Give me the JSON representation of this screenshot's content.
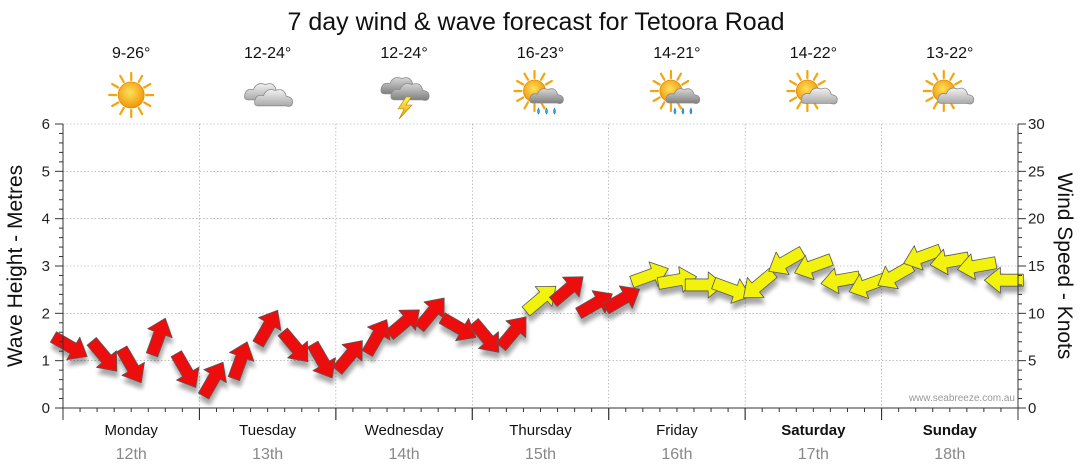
{
  "chart_data": {
    "type": "wind-wave-forecast",
    "title": "7 day wind & wave forecast for Tetoora Road",
    "ylabel_left": "Wave Height - Metres",
    "ylabel_right": "Wind Speed - Knots",
    "ylim_left": [
      0,
      6
    ],
    "ylim_right": [
      0,
      30
    ],
    "yticks_left": [
      "0",
      "1",
      "2",
      "3",
      "4",
      "5",
      "6"
    ],
    "yticks_right": [
      "0",
      "5",
      "10",
      "15",
      "20",
      "25",
      "30"
    ],
    "watermark": "www.seabreeze.com.au",
    "colors": {
      "red": "#ee1111",
      "yellow": "#f2f20a",
      "outline": "#555555",
      "grid": "#999999"
    },
    "days": [
      {
        "name": "Monday",
        "date": "12th",
        "temp": "9-26°",
        "weather": "sunny-icon",
        "weekend": false
      },
      {
        "name": "Tuesday",
        "date": "13th",
        "temp": "12-24°",
        "weather": "cloudy-icon",
        "weekend": false
      },
      {
        "name": "Wednesday",
        "date": "14th",
        "temp": "12-24°",
        "weather": "thunderstorm-icon",
        "weekend": false
      },
      {
        "name": "Thursday",
        "date": "15th",
        "temp": "16-23°",
        "weather": "sun-showers-icon",
        "weekend": false
      },
      {
        "name": "Friday",
        "date": "16th",
        "temp": "14-21°",
        "weather": "sun-showers-icon",
        "weekend": false
      },
      {
        "name": "Saturday",
        "date": "17th",
        "temp": "14-22°",
        "weather": "partly-cloudy-icon",
        "weekend": true
      },
      {
        "name": "Sunday",
        "date": "18th",
        "temp": "13-22°",
        "weather": "partly-cloudy-icon",
        "weekend": true
      }
    ],
    "wind_series": {
      "x_unit": "days",
      "x": [
        0.05,
        0.3,
        0.5,
        0.7,
        0.9,
        1.1,
        1.3,
        1.5,
        1.7,
        1.9,
        2.1,
        2.3,
        2.5,
        2.7,
        2.9,
        3.1,
        3.3,
        3.5,
        3.7,
        3.9,
        4.1,
        4.3,
        4.5,
        4.7,
        4.9,
        5.1,
        5.3,
        5.5,
        5.7,
        5.9,
        6.1,
        6.3,
        6.5,
        6.7,
        6.9
      ],
      "speed_knots": [
        6.5,
        5.5,
        4.5,
        7.5,
        4.0,
        3.0,
        5.0,
        8.5,
        6.5,
        5.0,
        5.5,
        7.5,
        9.0,
        10.0,
        8.5,
        7.5,
        8.0,
        11.5,
        12.5,
        11.0,
        11.5,
        14.0,
        13.5,
        13.0,
        12.5,
        13.0,
        15.5,
        15.0,
        13.5,
        13.0,
        14.0,
        16.0,
        15.5,
        15.0,
        13.5
      ],
      "direction_deg": [
        300,
        320,
        330,
        200,
        330,
        210,
        200,
        210,
        320,
        330,
        220,
        210,
        230,
        220,
        300,
        320,
        220,
        230,
        230,
        240,
        240,
        250,
        260,
        270,
        290,
        50,
        60,
        70,
        80,
        70,
        60,
        70,
        80,
        80,
        90
      ],
      "color": [
        "red",
        "red",
        "red",
        "red",
        "red",
        "red",
        "red",
        "red",
        "red",
        "red",
        "red",
        "red",
        "red",
        "red",
        "red",
        "red",
        "red",
        "yellow",
        "red",
        "red",
        "red",
        "yellow",
        "yellow",
        "yellow",
        "yellow",
        "yellow",
        "yellow",
        "yellow",
        "yellow",
        "yellow",
        "yellow",
        "yellow",
        "yellow",
        "yellow",
        "yellow"
      ]
    }
  }
}
